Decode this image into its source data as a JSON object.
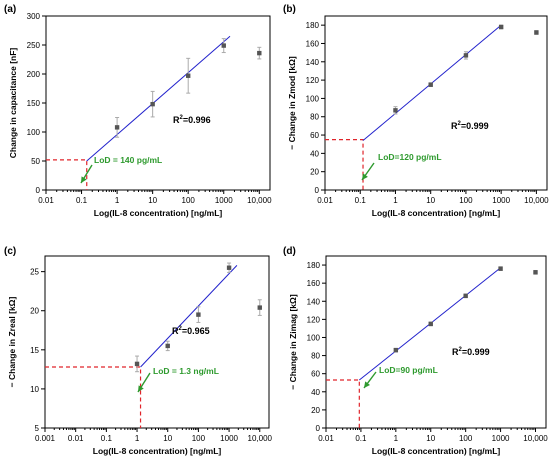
{
  "colors": {
    "fit_line": "#2222cc",
    "lod_guide": "#e0242a",
    "lod_text": "#2e9a2e",
    "marker": "#555555",
    "errorbar": "#aaaaaa"
  },
  "chart_data": [
    {
      "panel_label": "(a)",
      "type": "scatter",
      "x_scale": "log",
      "xlabel": "Log(IL-8 concentration) [ng/mL]",
      "ylabel": "Change in capacitance [nF]",
      "xlim": [
        0.01,
        20000
      ],
      "ylim": [
        0,
        300
      ],
      "xticks": [
        0.01,
        0.1,
        1,
        10,
        100,
        1000,
        10000
      ],
      "xtick_labels": [
        "0.01",
        "0.1",
        "1",
        "10",
        "100",
        "1000",
        "10,000"
      ],
      "yticks": [
        0,
        50,
        100,
        150,
        200,
        250,
        300
      ],
      "ytick_labels": [
        "0",
        "50",
        "100",
        "150",
        "200",
        "250",
        "300"
      ],
      "points": [
        {
          "x": 1,
          "y": 108,
          "err": 17
        },
        {
          "x": 10,
          "y": 148,
          "err": 22
        },
        {
          "x": 100,
          "y": 197,
          "err": 30
        },
        {
          "x": 1000,
          "y": 249,
          "err": 12
        },
        {
          "x": 10000,
          "y": 236,
          "err": 10
        }
      ],
      "fit": {
        "x": [
          0.14,
          1500
        ],
        "y": [
          50,
          265
        ]
      },
      "lod_point": {
        "x": 0.14,
        "y": 52
      },
      "r2_base": "R",
      "r2_sup": "2",
      "r2_value": "=0.996",
      "lod_text": "LoD = 140 pg/mL"
    },
    {
      "panel_label": "(b)",
      "type": "scatter",
      "x_scale": "log",
      "xlabel": "Log(IL-8 concentration) [ng/mL]",
      "ylabel": "− Change in Zmod [kΩ]",
      "xlim": [
        0.01,
        20000
      ],
      "ylim": [
        0,
        190
      ],
      "xticks": [
        0.01,
        0.1,
        1,
        10,
        100,
        1000,
        10000
      ],
      "xtick_labels": [
        "0.01",
        "0.1",
        "1",
        "10",
        "100",
        "1000",
        "10,000"
      ],
      "yticks": [
        0,
        20,
        40,
        60,
        80,
        100,
        120,
        140,
        160,
        180
      ],
      "ytick_labels": [
        "0",
        "20",
        "40",
        "60",
        "80",
        "100",
        "120",
        "140",
        "160",
        "180"
      ],
      "points": [
        {
          "x": 1,
          "y": 87,
          "err": 4
        },
        {
          "x": 10,
          "y": 115,
          "err": 2
        },
        {
          "x": 100,
          "y": 147,
          "err": 4
        },
        {
          "x": 1000,
          "y": 178,
          "err": 2
        },
        {
          "x": 10000,
          "y": 172,
          "err": 2
        }
      ],
      "fit": {
        "x": [
          0.12,
          1000
        ],
        "y": [
          54,
          180
        ]
      },
      "lod_point": {
        "x": 0.12,
        "y": 55
      },
      "r2_base": "R",
      "r2_sup": "2",
      "r2_value": "=0.999",
      "lod_text": "LoD=120 pg/mL"
    },
    {
      "panel_label": "(c)",
      "type": "scatter",
      "x_scale": "log",
      "xlabel": "Log(IL-8 concentration) [ng/mL]",
      "ylabel": "− Change in Zreal [kΩ]",
      "xlim": [
        0.001,
        20000
      ],
      "ylim": [
        5,
        27
      ],
      "xticks": [
        0.001,
        0.01,
        0.1,
        1,
        10,
        100,
        1000,
        10000
      ],
      "xtick_labels": [
        "0.001",
        "0.01",
        "0.1",
        "1",
        "10",
        "100",
        "1000",
        "10,000"
      ],
      "yticks": [
        5,
        10,
        15,
        20,
        25
      ],
      "ytick_labels": [
        "5",
        "10",
        "15",
        "20",
        "25"
      ],
      "points": [
        {
          "x": 1,
          "y": 13.2,
          "err": 1.0
        },
        {
          "x": 10,
          "y": 15.5,
          "err": 0.6
        },
        {
          "x": 100,
          "y": 19.5,
          "err": 1.0
        },
        {
          "x": 1000,
          "y": 25.5,
          "err": 0.6
        },
        {
          "x": 10000,
          "y": 20.4,
          "err": 1.0
        }
      ],
      "fit": {
        "x": [
          1.3,
          1800
        ],
        "y": [
          12.8,
          25.8
        ]
      },
      "lod_point": {
        "x": 1.3,
        "y": 12.8
      },
      "r2_base": "R",
      "r2_sup": "2",
      "r2_value": "=0.965",
      "lod_text": "LoD = 1.3 ng/mL"
    },
    {
      "panel_label": "(d)",
      "type": "scatter",
      "x_scale": "log",
      "xlabel": "Log(IL-8 concentration) [ng/mL]",
      "ylabel": "− Change in Zimag [kΩ]",
      "xlim": [
        0.01,
        20000
      ],
      "ylim": [
        0,
        190
      ],
      "xticks": [
        0.01,
        0.1,
        1,
        10,
        100,
        1000,
        10000
      ],
      "xtick_labels": [
        "0.01",
        "0.1",
        "1",
        "10",
        "100",
        "1000",
        "10,000"
      ],
      "yticks": [
        0,
        20,
        40,
        60,
        80,
        100,
        120,
        140,
        160,
        180
      ],
      "ytick_labels": [
        "0",
        "20",
        "40",
        "60",
        "80",
        "100",
        "120",
        "140",
        "160",
        "180"
      ],
      "points": [
        {
          "x": 1,
          "y": 86,
          "err": 2
        },
        {
          "x": 10,
          "y": 115,
          "err": 2
        },
        {
          "x": 100,
          "y": 146,
          "err": 2
        },
        {
          "x": 1000,
          "y": 176,
          "err": 2
        },
        {
          "x": 10000,
          "y": 172,
          "err": 2
        }
      ],
      "fit": {
        "x": [
          0.09,
          1000
        ],
        "y": [
          53,
          177
        ]
      },
      "lod_point": {
        "x": 0.09,
        "y": 53
      },
      "r2_base": "R",
      "r2_sup": "2",
      "r2_value": "=0.999",
      "lod_text": "LoD=90 pg/mL"
    }
  ]
}
